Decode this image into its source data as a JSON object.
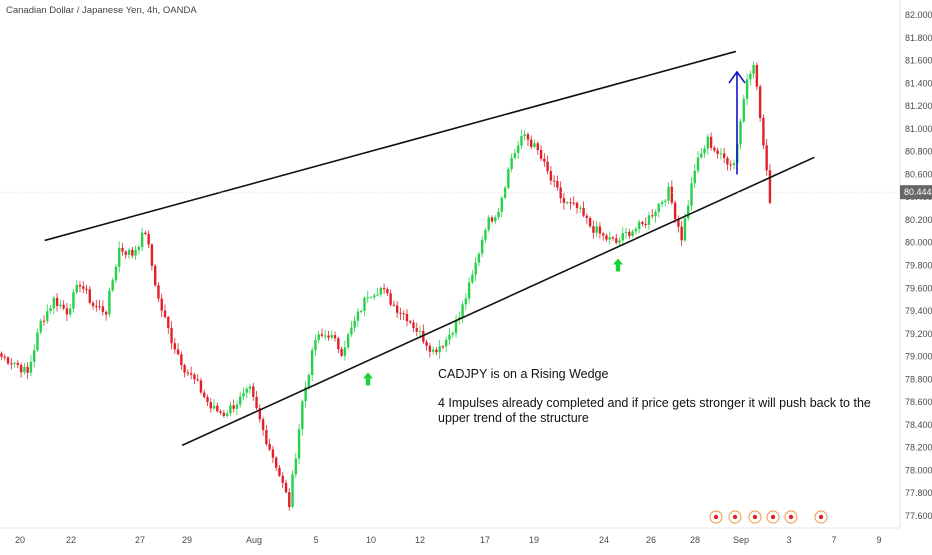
{
  "header": {
    "title": "Canadian Dollar / Japanese Yen, 4h, OANDA"
  },
  "price_axis": {
    "ticks": [
      "82.000",
      "81.800",
      "81.600",
      "81.400",
      "81.200",
      "81.000",
      "80.800",
      "80.600",
      "80.400",
      "80.200",
      "80.000",
      "79.800",
      "79.600",
      "79.400",
      "79.200",
      "79.000",
      "78.800",
      "78.600",
      "78.400",
      "78.200",
      "78.000",
      "77.800",
      "77.600"
    ],
    "current_price": "80.444"
  },
  "annotations": {
    "note_title": "CADJPY is on a Rising Wedge",
    "note_line1": "4 Impulses already completed and if price gets stronger it will push back to the",
    "note_line2": "upper trend of the structure"
  },
  "colors": {
    "up": "#26d14a",
    "down": "#e2202a",
    "trendline": "#111111",
    "projection_arrow": "#1010c8",
    "signal_arrow": "#19d23a",
    "price_tag": "#666666"
  },
  "icons": [
    "up-arrow-icon",
    "event-markers-icon"
  ],
  "chart_data": {
    "type": "candlestick",
    "title": "Canadian Dollar / Japanese Yen, 4h, OANDA",
    "xlabel": "",
    "ylabel": "",
    "ylim": [
      77.52,
      82.05
    ],
    "x_tick_labels": [
      "20",
      "22",
      "27",
      "29",
      "Aug",
      "5",
      "10",
      "12",
      "17",
      "19",
      "24",
      "26",
      "28",
      "Sep",
      "3",
      "7",
      "9"
    ],
    "y_tick_labels": [
      "82.000",
      "81.800",
      "81.600",
      "81.400",
      "81.200",
      "81.000",
      "80.800",
      "80.600",
      "80.400",
      "80.200",
      "80.000",
      "79.800",
      "79.600",
      "79.400",
      "79.200",
      "79.000",
      "78.800",
      "78.600",
      "78.400",
      "78.200",
      "78.000",
      "77.800",
      "77.600"
    ],
    "last_price": 80.444,
    "anchors": [
      [
        0,
        79.0
      ],
      [
        4,
        78.95
      ],
      [
        8,
        78.85
      ],
      [
        12,
        79.3
      ],
      [
        16,
        79.5
      ],
      [
        20,
        79.4
      ],
      [
        24,
        79.65
      ],
      [
        28,
        79.45
      ],
      [
        32,
        79.4
      ],
      [
        36,
        79.95
      ],
      [
        40,
        79.9
      ],
      [
        44,
        80.1
      ],
      [
        48,
        79.5
      ],
      [
        52,
        79.15
      ],
      [
        56,
        78.9
      ],
      [
        60,
        78.75
      ],
      [
        64,
        78.55
      ],
      [
        68,
        78.5
      ],
      [
        72,
        78.6
      ],
      [
        76,
        78.7
      ],
      [
        80,
        78.35
      ],
      [
        84,
        78.05
      ],
      [
        88,
        77.7
      ],
      [
        92,
        78.6
      ],
      [
        96,
        79.15
      ],
      [
        100,
        79.2
      ],
      [
        104,
        79.05
      ],
      [
        108,
        79.3
      ],
      [
        112,
        79.55
      ],
      [
        116,
        79.6
      ],
      [
        120,
        79.45
      ],
      [
        124,
        79.35
      ],
      [
        128,
        79.2
      ],
      [
        132,
        79.05
      ],
      [
        136,
        79.15
      ],
      [
        140,
        79.35
      ],
      [
        144,
        79.7
      ],
      [
        148,
        80.15
      ],
      [
        152,
        80.3
      ],
      [
        156,
        80.75
      ],
      [
        160,
        80.95
      ],
      [
        164,
        80.8
      ],
      [
        168,
        80.55
      ],
      [
        172,
        80.35
      ],
      [
        176,
        80.3
      ],
      [
        180,
        80.15
      ],
      [
        184,
        80.05
      ],
      [
        188,
        80.0
      ],
      [
        192,
        80.1
      ],
      [
        196,
        80.15
      ],
      [
        200,
        80.3
      ],
      [
        204,
        80.45
      ],
      [
        208,
        80.05
      ],
      [
        212,
        80.65
      ],
      [
        216,
        80.9
      ],
      [
        220,
        80.75
      ],
      [
        224,
        80.7
      ],
      [
        228,
        81.45
      ],
      [
        230,
        81.6
      ],
      [
        232,
        81.1
      ],
      [
        235,
        80.35
      ]
    ],
    "trendlines": [
      {
        "name": "upper",
        "from": [
          10,
          80.02
        ],
        "to": [
          244,
          81.68
        ]
      },
      {
        "name": "lower",
        "from": [
          52,
          78.22
        ],
        "to": [
          268,
          80.75
        ]
      }
    ],
    "projection_arrow": {
      "from": [
        244,
        80.6
      ],
      "to": [
        244,
        81.5
      ]
    },
    "signal_arrows": [
      [
        121,
        78.8
      ],
      [
        205,
        79.8
      ]
    ],
    "annotations": [
      "CADJPY is on a Rising Wedge",
      "4 Impulses already completed and if price gets stronger it will push back to the",
      "upper trend of the structure"
    ],
    "grid": false
  }
}
